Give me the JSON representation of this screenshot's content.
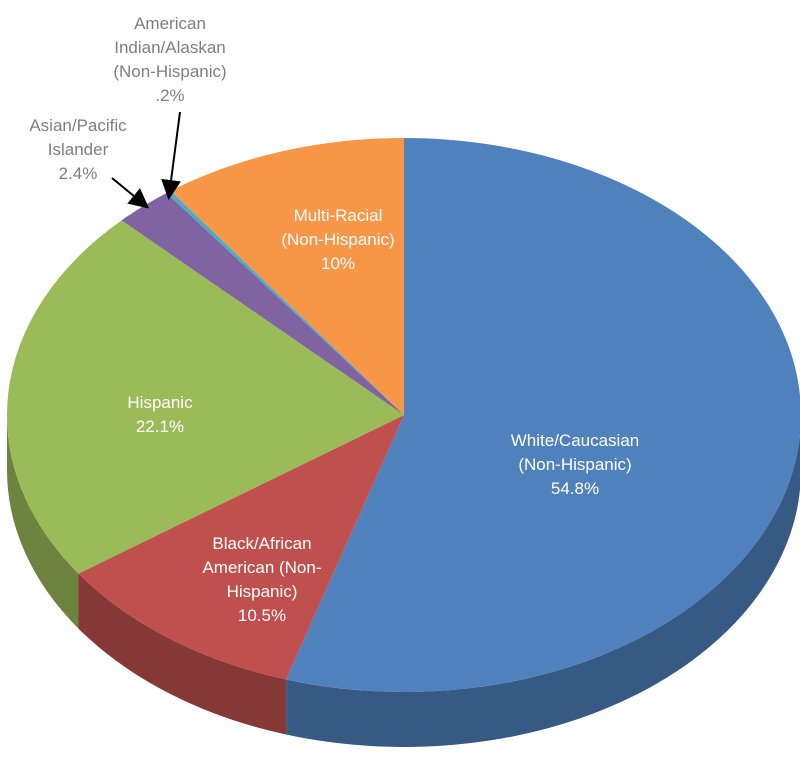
{
  "chart_data": {
    "type": "pie",
    "categories": [
      "White/Caucasian (Non-Hispanic)",
      "Black/African American (Non-Hispanic)",
      "Hispanic",
      "Asian/Pacific Islander",
      "American Indian/Alaskan (Non-Hispanic)",
      "Multi-Racial (Non-Hispanic)"
    ],
    "values": [
      54.8,
      10.5,
      22.1,
      2.4,
      0.2,
      10
    ],
    "value_labels": [
      "54.8%",
      "10.5%",
      "22.1%",
      "2.4%",
      ".2%",
      "10%"
    ],
    "colors": [
      "#4f81bd",
      "#c0504d",
      "#9bbb59",
      "#8064a2",
      "#4bacc6",
      "#f79646"
    ]
  }
}
